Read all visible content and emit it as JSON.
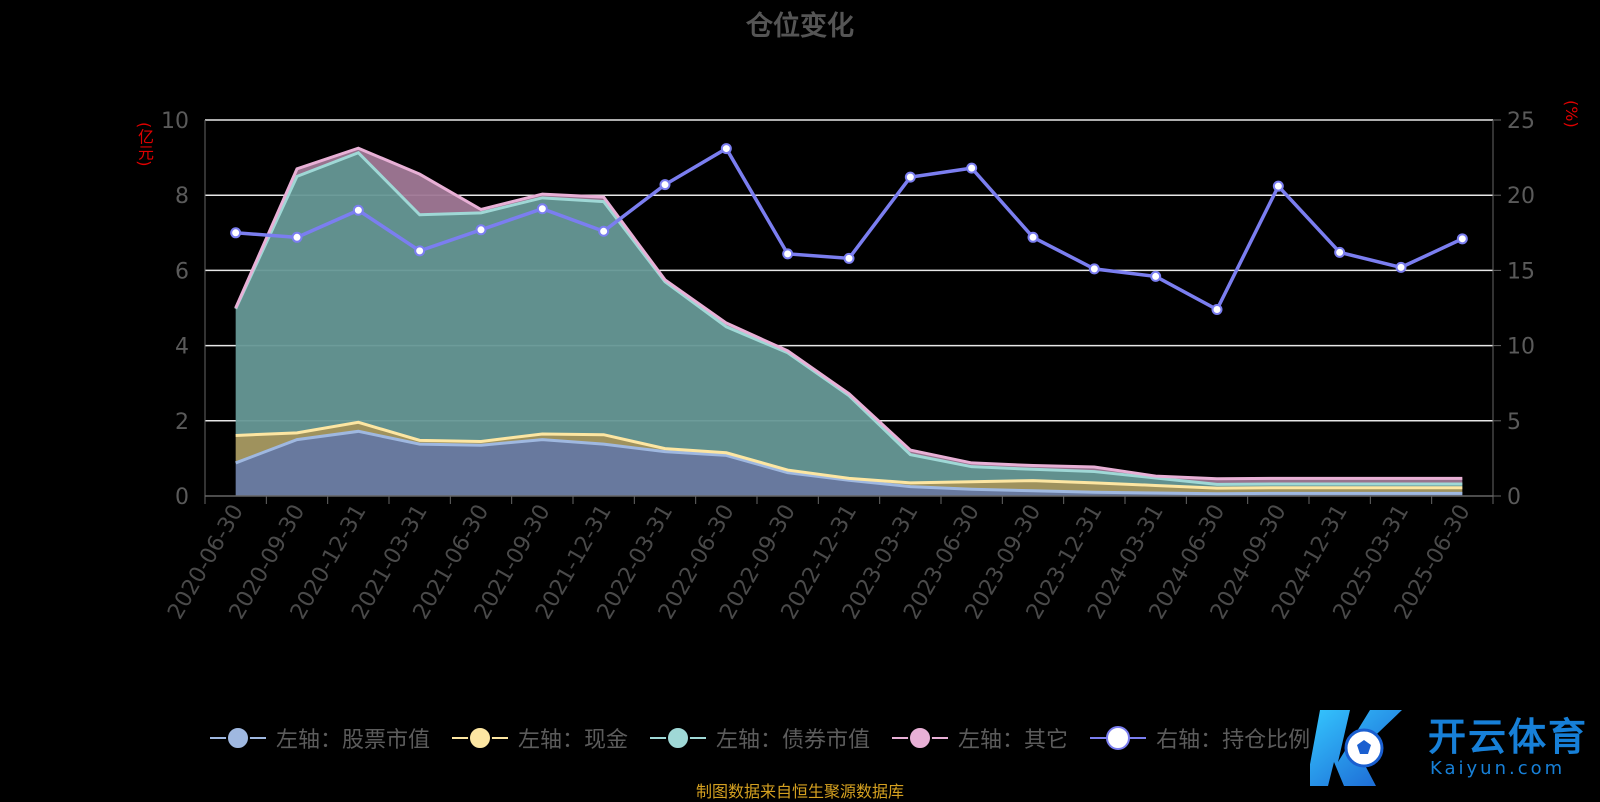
{
  "title": "仓位变化",
  "left_unit": "(亿元)",
  "right_unit": "(%)",
  "source": "制图数据来自恒生聚源数据库",
  "watermark": {
    "name": "开云体育",
    "sub": "Kaiyun.com"
  },
  "legend": [
    {
      "label": "左轴：股票市值",
      "color": "#9fb8e0"
    },
    {
      "label": "左轴：现金",
      "color": "#fde6a2"
    },
    {
      "label": "左轴：债券市值",
      "color": "#9fd8d6"
    },
    {
      "label": "左轴：其它",
      "color": "#e8b0d6"
    },
    {
      "label": "右轴：持仓比例",
      "color": "#7b7ef0"
    }
  ],
  "chart_data": {
    "type": "area",
    "title": "仓位变化",
    "categories": [
      "2020-06-30",
      "2020-09-30",
      "2020-12-31",
      "2021-03-31",
      "2021-06-30",
      "2021-09-30",
      "2021-12-31",
      "2022-03-31",
      "2022-06-30",
      "2022-09-30",
      "2022-12-31",
      "2023-03-31",
      "2023-06-30",
      "2023-09-30",
      "2023-12-31",
      "2024-03-31",
      "2024-06-30",
      "2024-09-30",
      "2024-12-31",
      "2025-03-31",
      "2025-06-30"
    ],
    "left_axis": {
      "unit": "(亿元)",
      "ylim": [
        0,
        10
      ],
      "ticks": [
        0,
        2,
        4,
        6,
        8,
        10
      ]
    },
    "right_axis": {
      "unit": "(%)",
      "ylim": [
        0,
        25
      ],
      "ticks": [
        0,
        5,
        10,
        15,
        20,
        25
      ]
    },
    "grid": true,
    "legend_position": "bottom",
    "stacked_series": [
      {
        "name": "左轴：股票市值",
        "axis": "left",
        "color": "#9fb8e0",
        "values": [
          0.88,
          1.5,
          1.72,
          1.38,
          1.35,
          1.5,
          1.38,
          1.18,
          1.08,
          0.62,
          0.42,
          0.25,
          0.18,
          0.14,
          0.1,
          0.08,
          0.06,
          0.07,
          0.07,
          0.07,
          0.07
        ]
      },
      {
        "name": "左轴：现金",
        "axis": "left",
        "color": "#fde6a2",
        "values": [
          0.73,
          0.18,
          0.24,
          0.1,
          0.1,
          0.15,
          0.25,
          0.08,
          0.07,
          0.07,
          0.05,
          0.1,
          0.2,
          0.27,
          0.25,
          0.2,
          0.15,
          0.15,
          0.15,
          0.15,
          0.15
        ]
      },
      {
        "name": "左轴：债券市值",
        "axis": "left",
        "color": "#9fd8d6",
        "values": [
          3.37,
          6.82,
          7.17,
          6.0,
          6.08,
          6.28,
          6.2,
          4.44,
          3.35,
          3.12,
          2.2,
          0.75,
          0.4,
          0.3,
          0.3,
          0.2,
          0.1,
          0.1,
          0.1,
          0.1,
          0.1
        ]
      },
      {
        "name": "左轴：其它",
        "axis": "left",
        "color": "#e8b0d6",
        "values": [
          0.02,
          0.2,
          0.12,
          1.08,
          0.09,
          0.1,
          0.12,
          0.05,
          0.1,
          0.05,
          0.05,
          0.12,
          0.1,
          0.1,
          0.12,
          0.05,
          0.15,
          0.15,
          0.15,
          0.15,
          0.15
        ]
      }
    ],
    "line_series": {
      "name": "右轴：持仓比例",
      "axis": "right",
      "color": "#7b7ef0",
      "values": [
        17.5,
        17.2,
        19.0,
        16.3,
        17.7,
        19.1,
        17.6,
        20.7,
        23.1,
        16.1,
        15.8,
        21.2,
        21.8,
        17.2,
        15.1,
        14.6,
        12.4,
        20.6,
        16.2,
        15.2,
        17.1
      ]
    }
  }
}
